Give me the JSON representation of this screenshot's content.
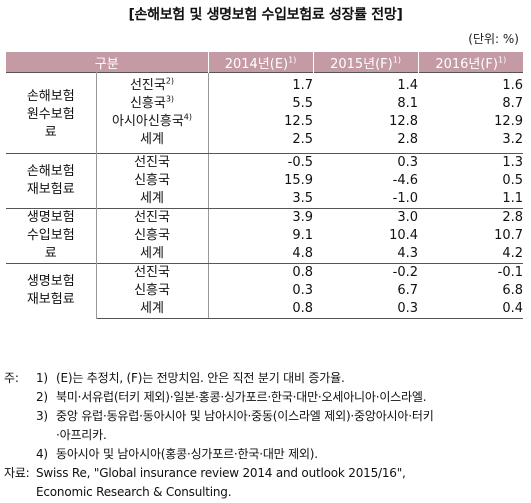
{
  "title": "[손해보험 및 생명보험 수입보험료 성장률 전망]",
  "unit": "(단위: %)",
  "header": {
    "category": "구분",
    "y2014": "2014년(E)",
    "y2015": "2015년(F)",
    "y2016": "2016년(F)",
    "sup": "1)"
  },
  "groups": [
    {
      "name_lines": [
        "손해보험",
        "원수보험",
        "료"
      ],
      "rows": [
        {
          "region": "선진국",
          "sup": "2)",
          "v": [
            "1.7",
            "1.4",
            "1.6"
          ]
        },
        {
          "region": "신흥국",
          "sup": "3)",
          "v": [
            "5.5",
            "8.1",
            "8.7"
          ]
        },
        {
          "region": "아시아신흥국",
          "sup": "4)",
          "v": [
            "12.5",
            "12.8",
            "12.9"
          ]
        },
        {
          "region": "세계",
          "sup": "",
          "v": [
            "2.5",
            "2.8",
            "3.2"
          ]
        }
      ]
    },
    {
      "name_lines": [
        "손해보험",
        "재보험료"
      ],
      "rows": [
        {
          "region": "선진국",
          "sup": "",
          "v": [
            "-0.5",
            "0.3",
            "1.3"
          ]
        },
        {
          "region": "신흥국",
          "sup": "",
          "v": [
            "15.9",
            "-4.6",
            "0.5"
          ]
        },
        {
          "region": "세계",
          "sup": "",
          "v": [
            "3.5",
            "-1.0",
            "1.1"
          ]
        }
      ]
    },
    {
      "name_lines": [
        "생명보험",
        "수입보험",
        "료"
      ],
      "rows": [
        {
          "region": "선진국",
          "sup": "",
          "v": [
            "3.9",
            "3.0",
            "2.8"
          ]
        },
        {
          "region": "신흥국",
          "sup": "",
          "v": [
            "9.1",
            "10.4",
            "10.7"
          ]
        },
        {
          "region": "세계",
          "sup": "",
          "v": [
            "4.8",
            "4.3",
            "4.2"
          ]
        }
      ]
    },
    {
      "name_lines": [
        "생명보험",
        "재보험료"
      ],
      "rows": [
        {
          "region": "선진국",
          "sup": "",
          "v": [
            "0.8",
            "-0.2",
            "-0.1"
          ]
        },
        {
          "region": "신흥국",
          "sup": "",
          "v": [
            "0.3",
            "6.7",
            "6.8"
          ]
        },
        {
          "region": "세계",
          "sup": "",
          "v": [
            "0.8",
            "0.3",
            "0.4"
          ]
        }
      ]
    }
  ],
  "notes": {
    "label": "주:",
    "items": [
      {
        "num": "1)",
        "text": "(E)는 추정치, (F)는 전망치임. 안은 직전 분기 대비 증가율."
      },
      {
        "num": "2)",
        "text": "북미·서유럽(터키 제외)·일본·홍콩·싱가포르·한국·대만·오세아니아·이스라엘."
      },
      {
        "num": "3)",
        "text": "중앙 유럽·동유럽·동아시아 및 남아시아·중동(이스라엘 제외)·중앙아시아·터키",
        "cont": "·아프리카."
      },
      {
        "num": "4)",
        "text": "동아시아 및 남아시아(홍콩·싱가포르·한국·대만 제외)."
      }
    ],
    "source_label": "자료:",
    "source_text": "Swiss Re, \"Global insurance review 2014 and outlook 2015/16\",",
    "source_cont": "Economic Research & Consulting."
  }
}
